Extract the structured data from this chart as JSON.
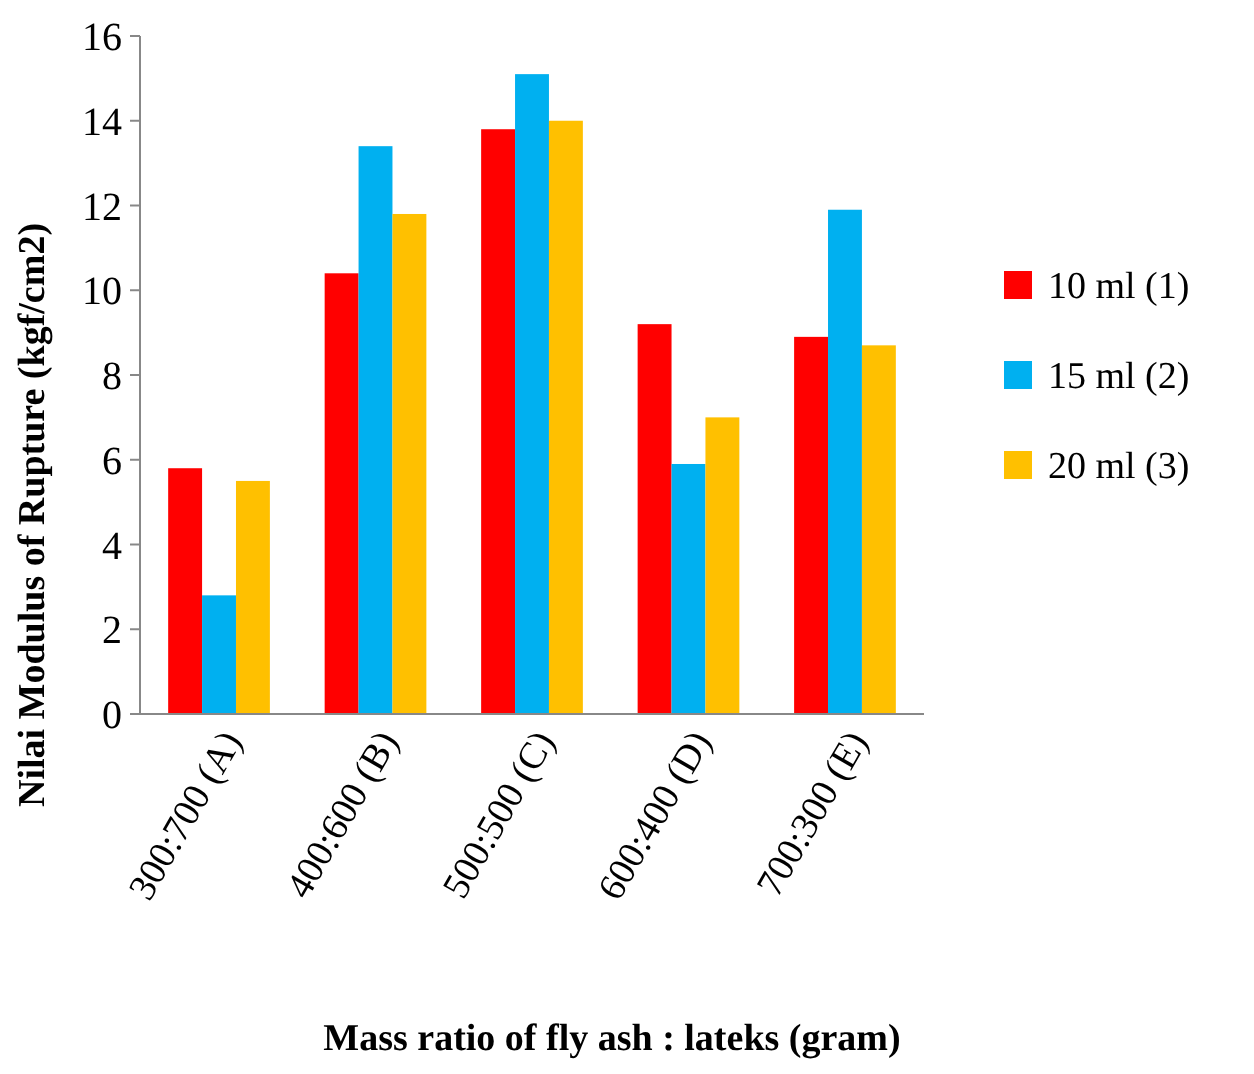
{
  "chart_data": {
    "type": "bar",
    "xlabel": "Mass ratio of fly ash : lateks (gram)",
    "ylabel": "Nilai Modulus of Rupture (kgf/cm2)",
    "categories": [
      "300:700 (A)",
      "400:600 (B)",
      "500:500 (C)",
      "600:400 (D)",
      "700:300 (E)"
    ],
    "series": [
      {
        "name": "10 ml (1)",
        "color": "#ff0000",
        "values": [
          5.8,
          10.4,
          13.8,
          9.2,
          8.9
        ]
      },
      {
        "name": "15 ml (2)",
        "color": "#00b0f0",
        "values": [
          2.8,
          13.4,
          15.1,
          5.9,
          11.9
        ]
      },
      {
        "name": "20 ml (3)",
        "color": "#ffc000",
        "values": [
          5.5,
          11.8,
          14.0,
          7.0,
          8.7
        ]
      }
    ],
    "ylim": [
      0,
      16
    ],
    "yticks": [
      0,
      2,
      4,
      6,
      8,
      10,
      12,
      14,
      16
    ],
    "grid": false,
    "legend": "right"
  }
}
